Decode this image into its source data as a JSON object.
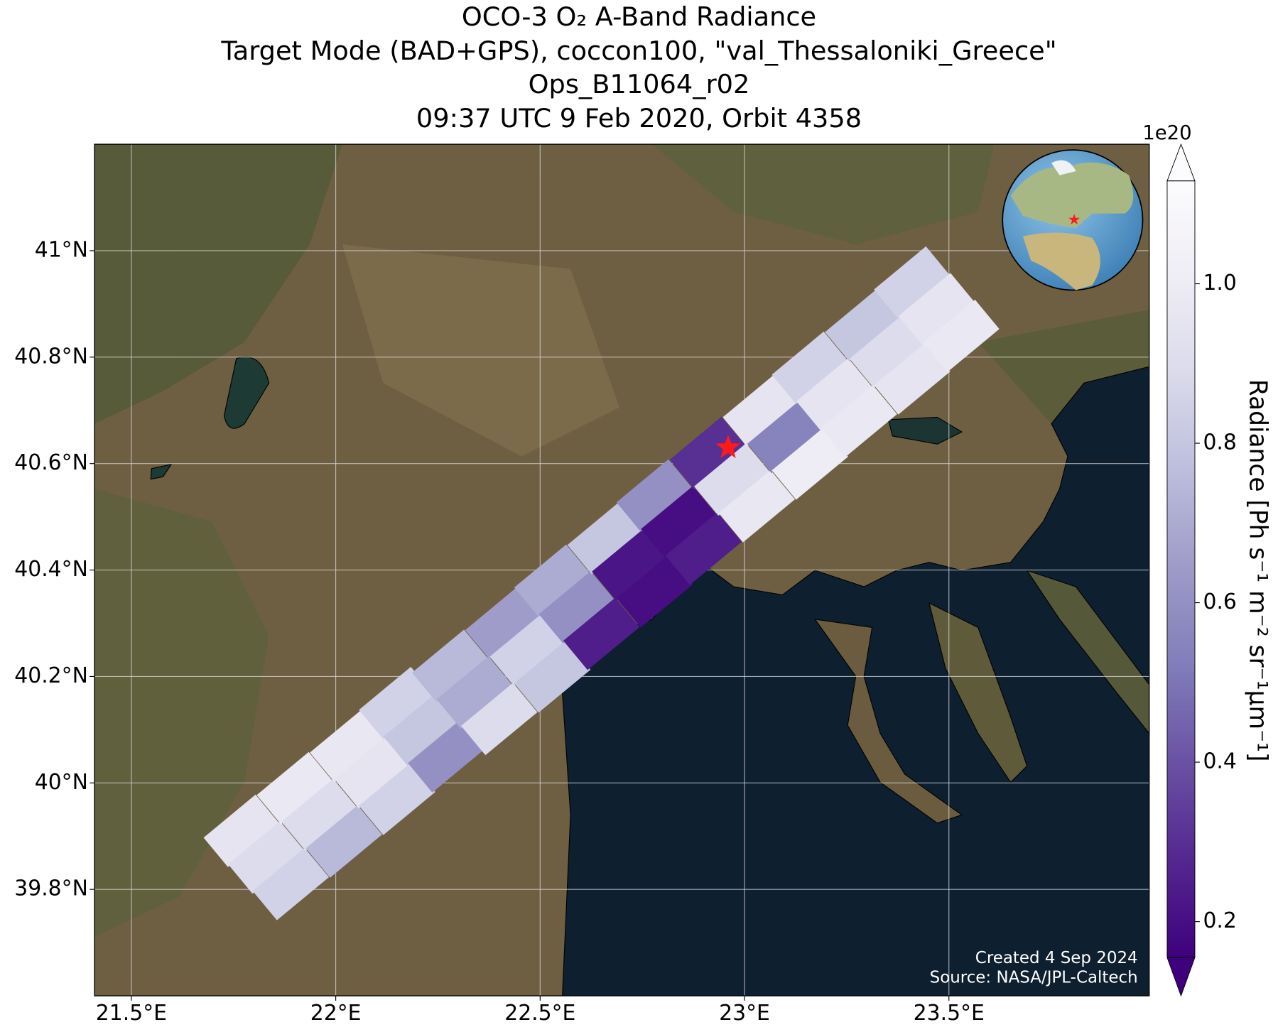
{
  "map": {
    "type": "swath",
    "title": [
      "OCO-3 O₂ A-Band Radiance",
      "Target Mode (BAD+GPS), coccon100, \"val_Thessaloniki_Greece\"",
      "Ops_B11064_r02",
      "09:37 UTC 9 Feb 2020, Orbit 4358"
    ],
    "xlim": [
      21.41,
      23.99
    ],
    "ylim": [
      39.6,
      41.2
    ],
    "xticks": [
      {
        "value": 21.5,
        "label": "21.5°E"
      },
      {
        "value": 22,
        "label": "22°E"
      },
      {
        "value": 22.5,
        "label": "22.5°E"
      },
      {
        "value": 23,
        "label": "23°E"
      },
      {
        "value": 23.5,
        "label": "23.5°E"
      }
    ],
    "yticks": [
      {
        "value": 39.8,
        "label": "39.8°N"
      },
      {
        "value": 40,
        "label": "40°N"
      },
      {
        "value": 40.2,
        "label": "40.2°N"
      },
      {
        "value": 40.4,
        "label": "40.4°N"
      },
      {
        "value": 40.6,
        "label": "40.6°N"
      },
      {
        "value": 40.8,
        "label": "40.8°N"
      },
      {
        "value": 41,
        "label": "41°N"
      }
    ],
    "grid": true,
    "target": {
      "lon": 22.96,
      "lat": 40.63,
      "color": "#ff1a1a"
    },
    "colorbar": {
      "label": "Radiance [Ph s⁻¹ m⁻² sr⁻¹μm⁻¹]",
      "exponent": "1e20",
      "clim": [
        0.155,
        1.129
      ],
      "ticks": [
        0.2,
        0.4,
        0.6,
        0.8,
        {
          "value": 1,
          "label": "1.0"
        }
      ],
      "extend": "both",
      "colormap": [
        "#3f007d",
        "#54278f",
        "#6a51a3",
        "#807dba",
        "#9e9ac8",
        "#bcbddc",
        "#dadaeb",
        "#efedf5",
        "#fcfbfd"
      ]
    },
    "soundings": [
      {
        "lon": 21.77,
        "lat": 39.91,
        "value": 0.95
      },
      {
        "lon": 21.83,
        "lat": 39.86,
        "value": 0.9
      },
      {
        "lon": 21.89,
        "lat": 39.81,
        "value": 0.85
      },
      {
        "lon": 21.9,
        "lat": 39.99,
        "value": 0.98
      },
      {
        "lon": 21.96,
        "lat": 39.94,
        "value": 0.9
      },
      {
        "lon": 22.02,
        "lat": 39.89,
        "value": 0.75
      },
      {
        "lon": 22.03,
        "lat": 40.07,
        "value": 0.97
      },
      {
        "lon": 22.09,
        "lat": 40.02,
        "value": 0.95
      },
      {
        "lon": 22.15,
        "lat": 39.97,
        "value": 0.85
      },
      {
        "lon": 22.15,
        "lat": 40.15,
        "value": 0.85
      },
      {
        "lon": 22.21,
        "lat": 40.1,
        "value": 0.8
      },
      {
        "lon": 22.27,
        "lat": 40.05,
        "value": 0.6
      },
      {
        "lon": 22.28,
        "lat": 40.22,
        "value": 0.75
      },
      {
        "lon": 22.34,
        "lat": 40.17,
        "value": 0.7
      },
      {
        "lon": 22.4,
        "lat": 40.12,
        "value": 0.9
      },
      {
        "lon": 22.41,
        "lat": 40.3,
        "value": 0.65
      },
      {
        "lon": 22.47,
        "lat": 40.25,
        "value": 0.85
      },
      {
        "lon": 22.53,
        "lat": 40.2,
        "value": 0.8
      },
      {
        "lon": 22.53,
        "lat": 40.38,
        "value": 0.7
      },
      {
        "lon": 22.59,
        "lat": 40.33,
        "value": 0.6
      },
      {
        "lon": 22.65,
        "lat": 40.28,
        "value": 0.25
      },
      {
        "lon": 22.66,
        "lat": 40.46,
        "value": 0.8
      },
      {
        "lon": 22.72,
        "lat": 40.41,
        "value": 0.22
      },
      {
        "lon": 22.78,
        "lat": 40.36,
        "value": 0.2
      },
      {
        "lon": 22.78,
        "lat": 40.54,
        "value": 0.6
      },
      {
        "lon": 22.84,
        "lat": 40.49,
        "value": 0.2
      },
      {
        "lon": 22.9,
        "lat": 40.44,
        "value": 0.25
      },
      {
        "lon": 22.91,
        "lat": 40.62,
        "value": 0.3
      },
      {
        "lon": 22.97,
        "lat": 40.57,
        "value": 0.9
      },
      {
        "lon": 23.03,
        "lat": 40.52,
        "value": 0.97
      },
      {
        "lon": 23.04,
        "lat": 40.7,
        "value": 0.95
      },
      {
        "lon": 23.1,
        "lat": 40.65,
        "value": 0.55
      },
      {
        "lon": 23.16,
        "lat": 40.6,
        "value": 1.0
      },
      {
        "lon": 23.16,
        "lat": 40.78,
        "value": 0.85
      },
      {
        "lon": 23.22,
        "lat": 40.73,
        "value": 0.95
      },
      {
        "lon": 23.28,
        "lat": 40.68,
        "value": 0.98
      },
      {
        "lon": 23.29,
        "lat": 40.86,
        "value": 0.8
      },
      {
        "lon": 23.35,
        "lat": 40.81,
        "value": 0.9
      },
      {
        "lon": 23.41,
        "lat": 40.76,
        "value": 0.95
      },
      {
        "lon": 23.41,
        "lat": 40.94,
        "value": 0.85
      },
      {
        "lon": 23.47,
        "lat": 40.89,
        "value": 0.95
      },
      {
        "lon": 23.53,
        "lat": 40.84,
        "value": 0.98
      }
    ],
    "credits": [
      "Created 4 Sep 2024",
      "Source: NASA/JPL-Caltech"
    ]
  }
}
